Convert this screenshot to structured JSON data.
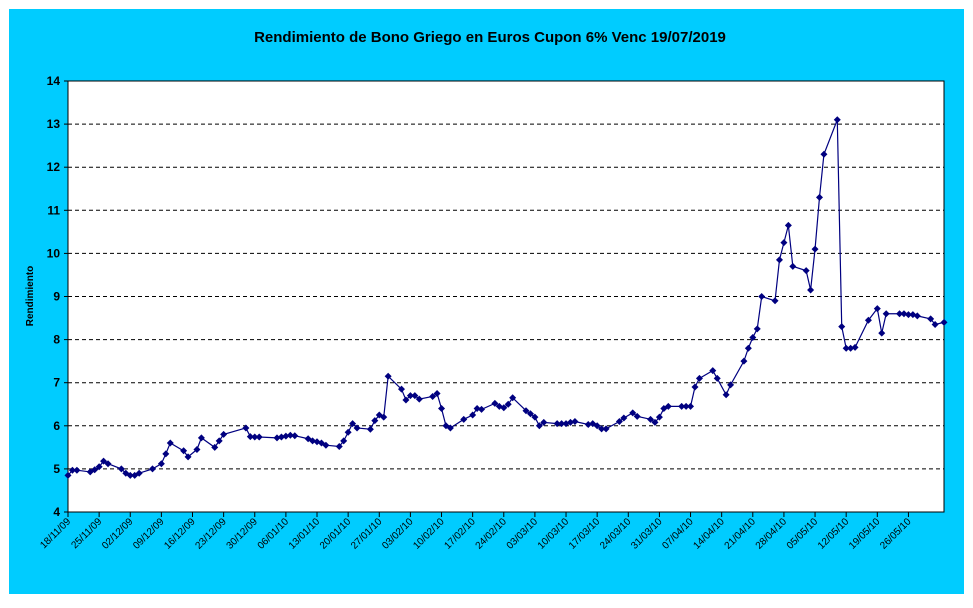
{
  "chart_data": {
    "type": "line",
    "title": "Rendimiento de Bono Griego en Euros Cupon 6% Venc 19/07/2019",
    "y_label": "Rendimiento",
    "color": "#000080",
    "grid": true,
    "ylim": [
      4,
      14
    ],
    "yticks": [
      4,
      5,
      6,
      7,
      8,
      9,
      10,
      11,
      12,
      13,
      14
    ],
    "xlim": [
      "2009-11-18",
      "2010-06-03"
    ],
    "xticks": [
      {
        "value": "2009-11-18",
        "label": "18/11/09"
      },
      {
        "value": "2009-11-25",
        "label": "25/11/09"
      },
      {
        "value": "2009-12-02",
        "label": "02/12/09"
      },
      {
        "value": "2009-12-09",
        "label": "09/12/09"
      },
      {
        "value": "2009-12-16",
        "label": "16/12/09"
      },
      {
        "value": "2009-12-23",
        "label": "23/12/09"
      },
      {
        "value": "2009-12-30",
        "label": "30/12/09"
      },
      {
        "value": "2010-01-06",
        "label": "06/01/10"
      },
      {
        "value": "2010-01-13",
        "label": "13/01/10"
      },
      {
        "value": "2010-01-20",
        "label": "20/01/10"
      },
      {
        "value": "2010-01-27",
        "label": "27/01/10"
      },
      {
        "value": "2010-02-03",
        "label": "03/02/10"
      },
      {
        "value": "2010-02-10",
        "label": "10/02/10"
      },
      {
        "value": "2010-02-17",
        "label": "17/02/10"
      },
      {
        "value": "2010-02-24",
        "label": "24/02/10"
      },
      {
        "value": "2010-03-03",
        "label": "03/03/10"
      },
      {
        "value": "2010-03-10",
        "label": "10/03/10"
      },
      {
        "value": "2010-03-17",
        "label": "17/03/10"
      },
      {
        "value": "2010-03-24",
        "label": "24/03/10"
      },
      {
        "value": "2010-03-31",
        "label": "31/03/10"
      },
      {
        "value": "2010-04-07",
        "label": "07/04/10"
      },
      {
        "value": "2010-04-14",
        "label": "14/04/10"
      },
      {
        "value": "2010-04-21",
        "label": "21/04/10"
      },
      {
        "value": "2010-04-28",
        "label": "28/04/10"
      },
      {
        "value": "2010-05-05",
        "label": "05/05/10"
      },
      {
        "value": "2010-05-12",
        "label": "12/05/10"
      },
      {
        "value": "2010-05-19",
        "label": "19/05/10"
      },
      {
        "value": "2010-05-26",
        "label": "26/05/10"
      }
    ],
    "x": [
      "2009-11-18",
      "2009-11-19",
      "2009-11-20",
      "2009-11-23",
      "2009-11-24",
      "2009-11-25",
      "2009-11-26",
      "2009-11-27",
      "2009-11-30",
      "2009-12-01",
      "2009-12-02",
      "2009-12-03",
      "2009-12-04",
      "2009-12-07",
      "2009-12-09",
      "2009-12-10",
      "2009-12-11",
      "2009-12-14",
      "2009-12-15",
      "2009-12-17",
      "2009-12-18",
      "2009-12-21",
      "2009-12-22",
      "2009-12-23",
      "2009-12-28",
      "2009-12-29",
      "2009-12-30",
      "2009-12-31",
      "2010-01-04",
      "2010-01-05",
      "2010-01-06",
      "2010-01-07",
      "2010-01-08",
      "2010-01-11",
      "2010-01-12",
      "2010-01-13",
      "2010-01-14",
      "2010-01-15",
      "2010-01-18",
      "2010-01-19",
      "2010-01-20",
      "2010-01-21",
      "2010-01-22",
      "2010-01-25",
      "2010-01-26",
      "2010-01-27",
      "2010-01-28",
      "2010-01-29",
      "2010-02-01",
      "2010-02-02",
      "2010-02-03",
      "2010-02-04",
      "2010-02-05",
      "2010-02-08",
      "2010-02-09",
      "2010-02-10",
      "2010-02-11",
      "2010-02-12",
      "2010-02-15",
      "2010-02-17",
      "2010-02-18",
      "2010-02-19",
      "2010-02-22",
      "2010-02-23",
      "2010-02-24",
      "2010-02-25",
      "2010-02-26",
      "2010-03-01",
      "2010-03-02",
      "2010-03-03",
      "2010-03-04",
      "2010-03-05",
      "2010-03-08",
      "2010-03-09",
      "2010-03-10",
      "2010-03-11",
      "2010-03-12",
      "2010-03-15",
      "2010-03-16",
      "2010-03-17",
      "2010-03-18",
      "2010-03-19",
      "2010-03-22",
      "2010-03-23",
      "2010-03-25",
      "2010-03-26",
      "2010-03-29",
      "2010-03-30",
      "2010-03-31",
      "2010-04-01",
      "2010-04-02",
      "2010-04-05",
      "2010-04-06",
      "2010-04-07",
      "2010-04-08",
      "2010-04-09",
      "2010-04-12",
      "2010-04-13",
      "2010-04-15",
      "2010-04-16",
      "2010-04-19",
      "2010-04-20",
      "2010-04-21",
      "2010-04-22",
      "2010-04-23",
      "2010-04-26",
      "2010-04-27",
      "2010-04-28",
      "2010-04-29",
      "2010-04-30",
      "2010-05-03",
      "2010-05-04",
      "2010-05-05",
      "2010-05-06",
      "2010-05-07",
      "2010-05-10",
      "2010-05-11",
      "2010-05-12",
      "2010-05-13",
      "2010-05-14",
      "2010-05-17",
      "2010-05-19",
      "2010-05-20",
      "2010-05-21",
      "2010-05-24",
      "2010-05-25",
      "2010-05-26",
      "2010-05-27",
      "2010-05-28",
      "2010-05-31",
      "2010-06-01",
      "2010-06-03"
    ],
    "values": [
      4.85,
      4.97,
      4.97,
      4.93,
      4.98,
      5.05,
      5.18,
      5.12,
      5.0,
      4.9,
      4.85,
      4.85,
      4.9,
      5.0,
      5.12,
      5.35,
      5.6,
      5.42,
      5.28,
      5.45,
      5.72,
      5.5,
      5.65,
      5.8,
      5.95,
      5.75,
      5.74,
      5.74,
      5.72,
      5.74,
      5.76,
      5.78,
      5.77,
      5.7,
      5.65,
      5.63,
      5.6,
      5.55,
      5.52,
      5.65,
      5.85,
      6.05,
      5.95,
      5.92,
      6.12,
      6.25,
      6.2,
      7.15,
      6.85,
      6.6,
      6.7,
      6.7,
      6.62,
      6.68,
      6.75,
      6.4,
      6.0,
      5.95,
      6.15,
      6.25,
      6.4,
      6.38,
      6.52,
      6.45,
      6.42,
      6.5,
      6.65,
      6.35,
      6.28,
      6.2,
      6.0,
      6.08,
      6.05,
      6.05,
      6.05,
      6.08,
      6.1,
      6.03,
      6.05,
      6.0,
      5.93,
      5.93,
      6.1,
      6.18,
      6.3,
      6.22,
      6.15,
      6.08,
      6.2,
      6.4,
      6.45,
      6.45,
      6.45,
      6.45,
      6.9,
      7.1,
      7.28,
      7.1,
      6.72,
      6.95,
      7.5,
      7.8,
      8.05,
      8.25,
      9.0,
      8.9,
      9.85,
      10.25,
      10.65,
      9.7,
      9.6,
      9.15,
      10.1,
      11.3,
      12.3,
      13.1,
      8.3,
      7.8,
      7.8,
      7.82,
      8.45,
      8.72,
      8.15,
      8.6,
      8.6,
      8.6,
      8.58,
      8.58,
      8.55,
      8.48,
      8.35,
      8.4
    ]
  }
}
